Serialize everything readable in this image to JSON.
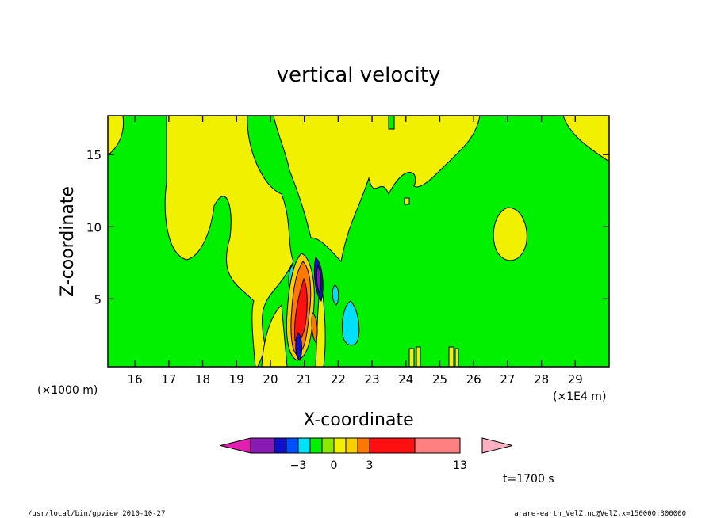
{
  "chart_data": {
    "type": "heatmap",
    "title": "vertical velocity",
    "xlabel": "X-coordinate",
    "ylabel": "Z-coordinate",
    "x_unit_left": "(×1000 m)",
    "x_unit_right": "(×1E4 m)",
    "xlim": [
      15.2,
      30.0
    ],
    "ylim": [
      0.3,
      17.7
    ],
    "x_ticks": [
      16,
      17,
      18,
      19,
      20,
      21,
      22,
      23,
      24,
      25,
      26,
      27,
      28,
      29
    ],
    "y_ticks": [
      5,
      10,
      15
    ],
    "time_label": "t=1700 s",
    "colorbar": {
      "levels": [
        -6,
        -5,
        -4,
        -3,
        -2,
        -1,
        0,
        1,
        2,
        3,
        8,
        13
      ],
      "labels": [
        {
          "value": -3,
          "text": "−3"
        },
        {
          "value": 0,
          "text": "0"
        },
        {
          "value": 3,
          "text": "3"
        },
        {
          "value": 13,
          "text": "13"
        }
      ],
      "colors": [
        "#e01fb0",
        "#8a1ab4",
        "#1010c8",
        "#0050ff",
        "#00e0f8",
        "#00f000",
        "#8ce800",
        "#f0f000",
        "#f8d000",
        "#ff7800",
        "#ff1010",
        "#ff8080",
        "#ffb0c0"
      ]
    },
    "regions": [
      {
        "name": "background-green",
        "level": "0",
        "color": "#00f000"
      },
      {
        "name": "yellow-positive",
        "level": "1",
        "color": "#f0f000"
      },
      {
        "name": "cyan-negative",
        "level": "-1",
        "color": "#00e0f8"
      },
      {
        "name": "orange-updraft",
        "level": "3",
        "color": "#ff7800"
      },
      {
        "name": "red-updraft",
        "level": "8",
        "color": "#ff1010"
      },
      {
        "name": "blue-downdraft",
        "level": "-3",
        "color": "#1010c8"
      }
    ]
  },
  "footer": {
    "left": "/usr/local/bin/gpview   2010-10-27",
    "right": "arare-earth_VelZ.nc@VelZ,x=150000:300000"
  }
}
